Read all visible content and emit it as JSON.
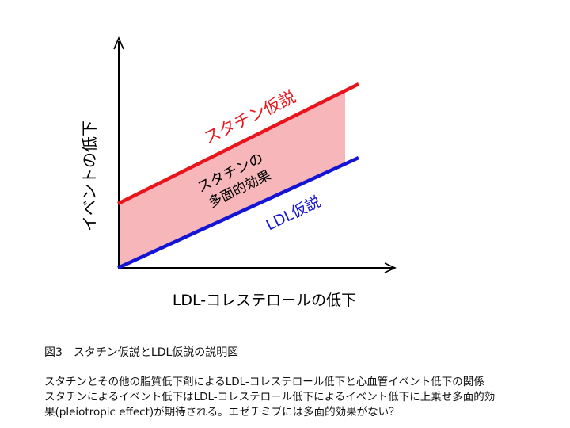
{
  "diagram": {
    "y_axis_label": "イベントの低下",
    "x_axis_label": "LDL-コレステロールの低下",
    "statin_line_label": "スタチン仮説",
    "ldl_line_label": "LDL仮説",
    "band_label_line1": "スタチンの",
    "band_label_line2": "多面的効果",
    "colors": {
      "statin_line": "#e8161c",
      "ldl_line": "#1414d4",
      "band_fill": "#f7b6ba",
      "axes": "#000000"
    }
  },
  "caption": {
    "title": "図3　スタチン仮説とLDL仮説の説明図",
    "line1": "スタチンとその他の脂質低下剤によるLDL-コレステロール低下と心血管イベント低下の関係",
    "line2": "スタチンによるイベント低下はLDL-コレステロール低下によるイベント低下に上乗せ多面的効",
    "line3": "果(pleiotropic effect)が期待される。エゼチミブには多面的効果がない？"
  }
}
